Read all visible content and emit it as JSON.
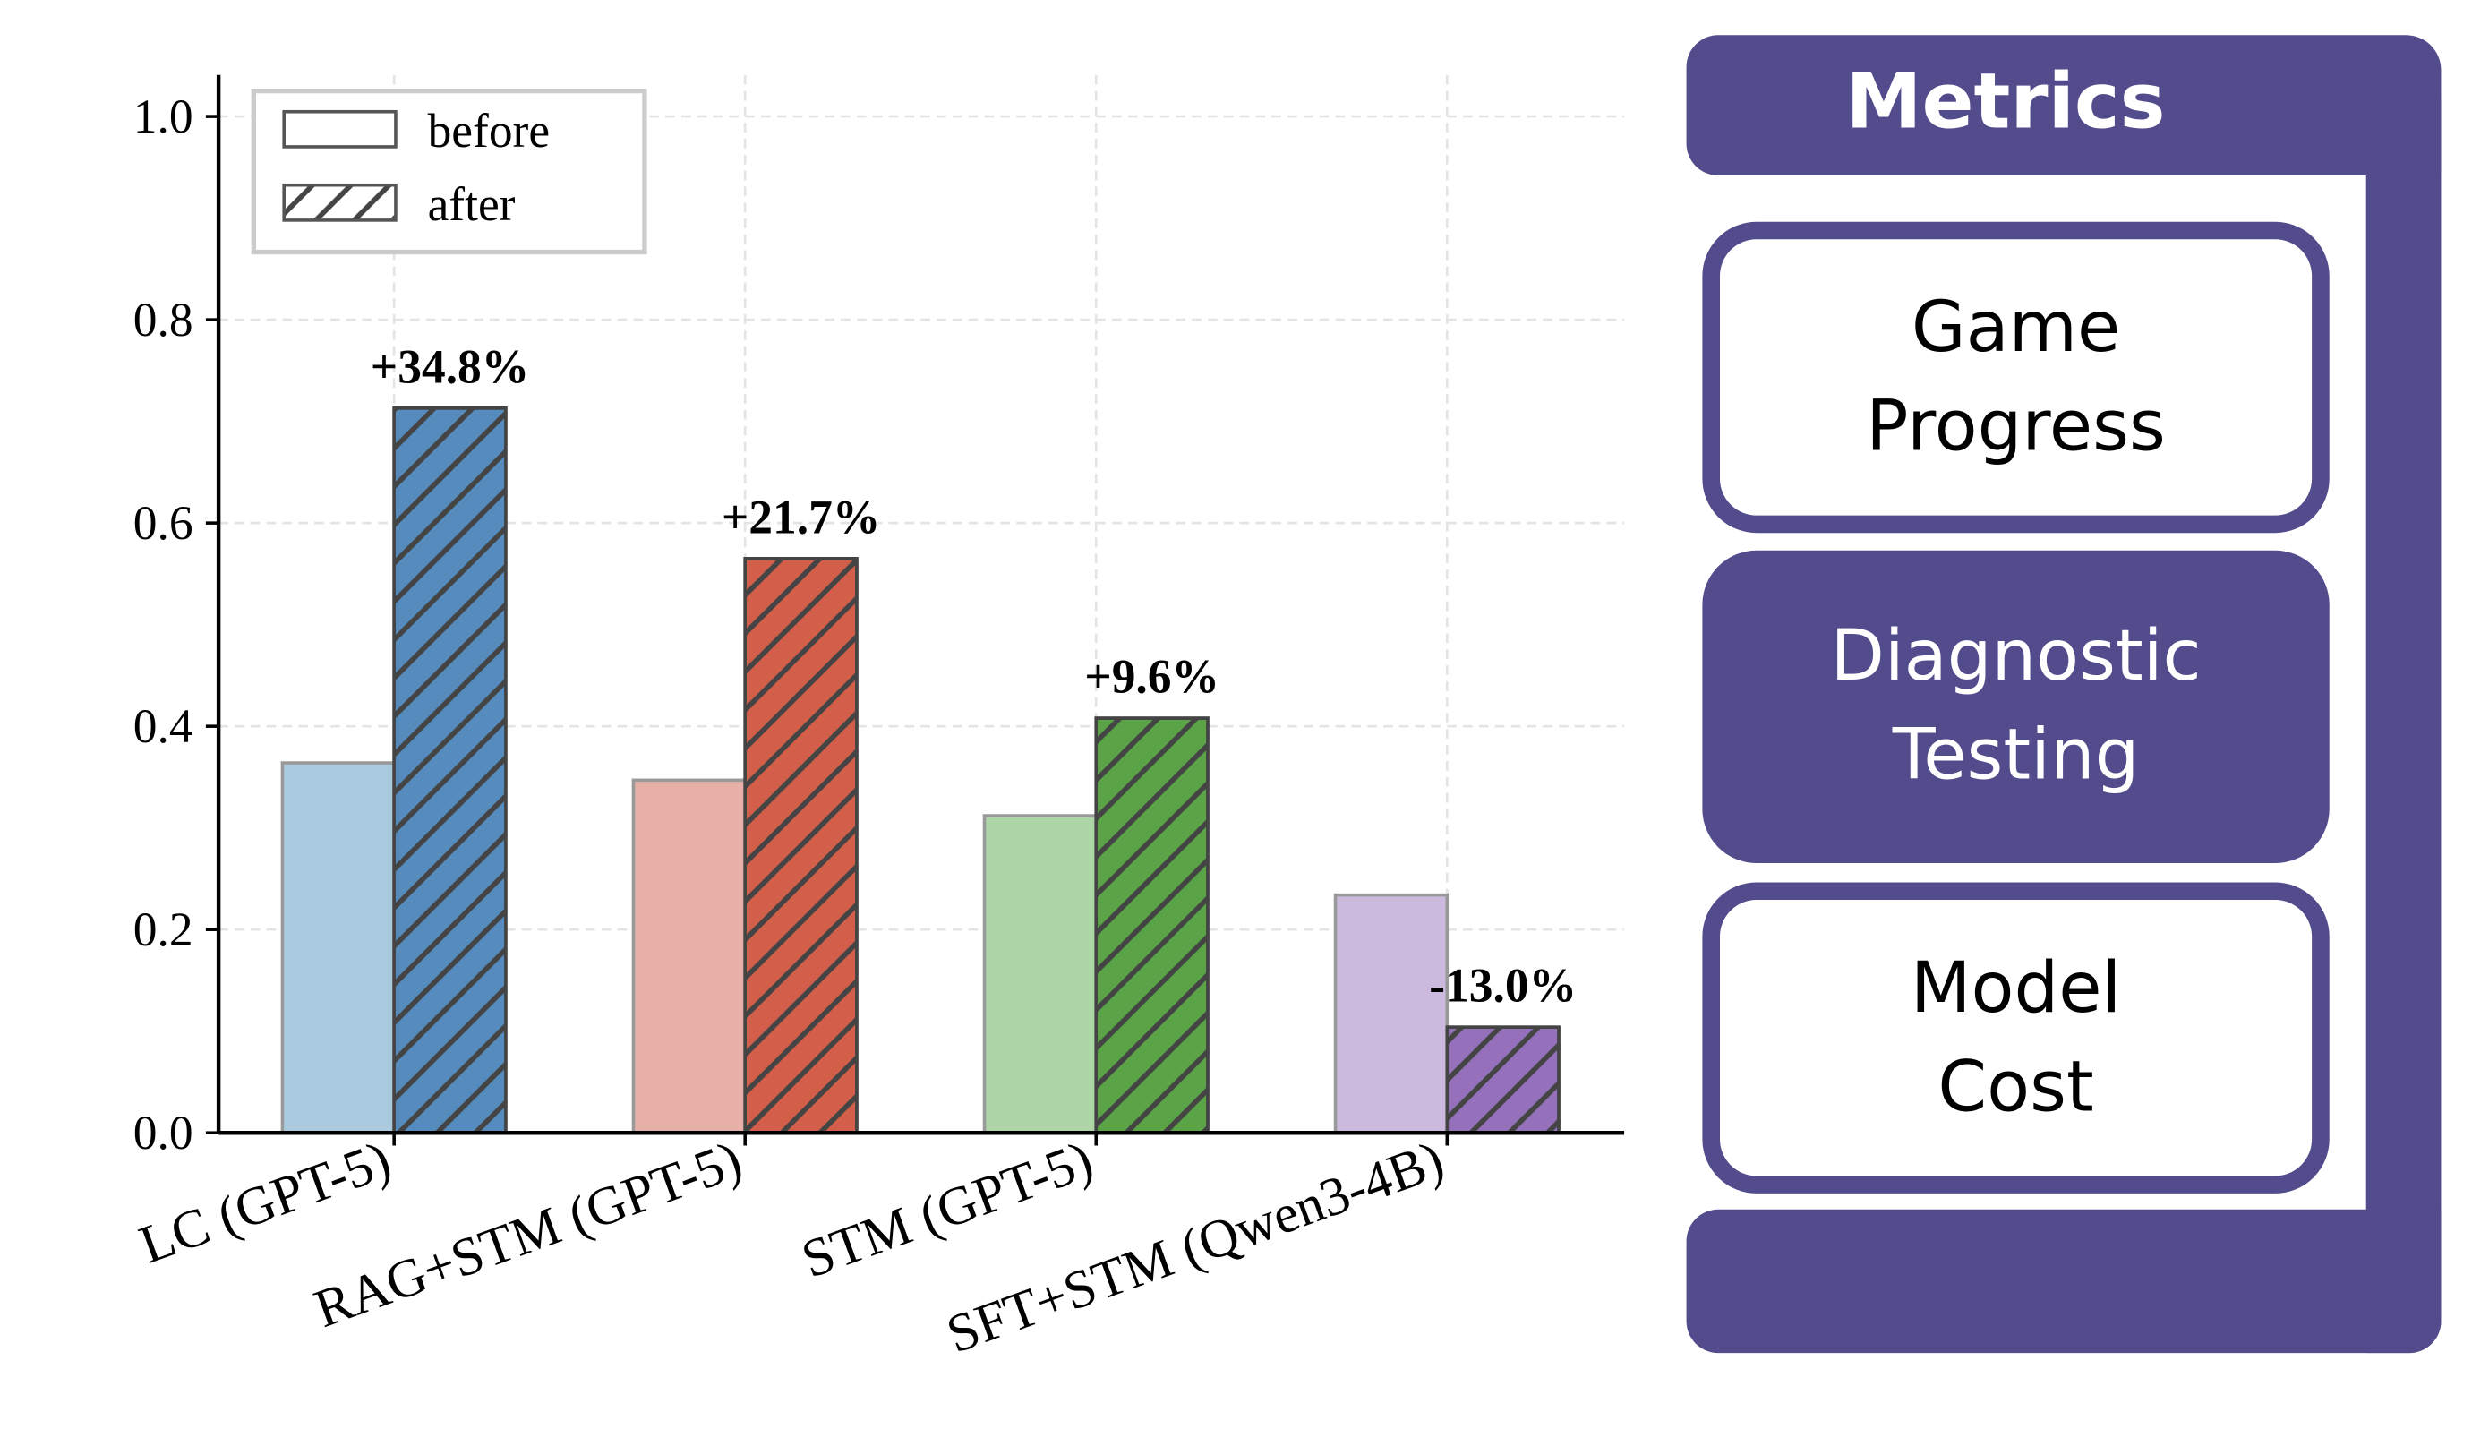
{
  "chart_data": {
    "type": "bar",
    "categories": [
      "LC (GPT-5)",
      "RAG+STM (GPT-5)",
      "STM (GPT-5)",
      "SFT+STM (Qwen3-4B)"
    ],
    "series": [
      {
        "name": "before",
        "values": [
          0.364,
          0.347,
          0.312,
          0.234
        ],
        "colors": [
          "#AACAE0",
          "#E6B0A8",
          "#AED5A6",
          "#CBBADE"
        ],
        "hatch": false
      },
      {
        "name": "after",
        "values": [
          0.713,
          0.565,
          0.408,
          0.104
        ],
        "colors": [
          "#558BBD",
          "#D35F4A",
          "#5AA447",
          "#9471BA"
        ],
        "hatch": true
      }
    ],
    "annotations": [
      "+34.8%",
      "+21.7%",
      "+9.6%",
      "-13.0%"
    ],
    "ylim": [
      0,
      1.0
    ],
    "yticks": [
      "0.0",
      "0.2",
      "0.4",
      "0.6",
      "0.8",
      "1.0"
    ],
    "ytick_values": [
      0,
      0.2,
      0.4,
      0.6,
      0.8,
      1.0
    ],
    "xlabel": "",
    "ylabel": "",
    "title": "",
    "grid": true,
    "legend": {
      "placement": "top-left",
      "entries": [
        "before",
        "after"
      ]
    }
  },
  "metrics_panel": {
    "title": "Metrics",
    "color": "#524C8C",
    "items": [
      {
        "label": "Game\nProgress",
        "highlighted": false
      },
      {
        "label": "Diagnostic\nTesting",
        "highlighted": true
      },
      {
        "label": "Model\nCost",
        "highlighted": false
      }
    ]
  }
}
